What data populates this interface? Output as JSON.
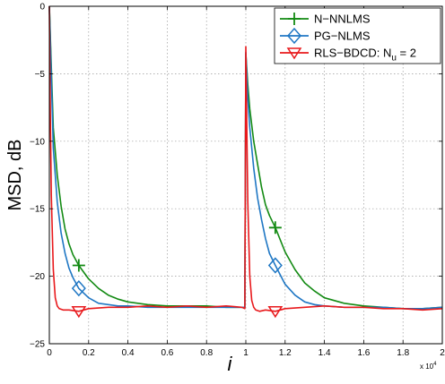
{
  "chart_data": {
    "type": "line",
    "xlabel": "i",
    "ylabel": "MSD, dB",
    "x_multiplier": "x 10^4",
    "xlim": [
      0,
      2
    ],
    "ylim": [
      -25,
      0
    ],
    "xticks": [
      0,
      0.2,
      0.4,
      0.6,
      0.8,
      1,
      1.2,
      1.4,
      1.6,
      1.8,
      2
    ],
    "yticks": [
      0,
      -5,
      -10,
      -15,
      -20,
      -25
    ],
    "xtick_labels": [
      "0",
      "0.2",
      "0.4",
      "0.6",
      "0.8",
      "1",
      "1.2",
      "1.4",
      "1.6",
      "1.8",
      "2"
    ],
    "ytick_labels": [
      "0",
      "−5",
      "−10",
      "−15",
      "−20",
      "−25"
    ],
    "grid": true,
    "legend_position": "top-right",
    "series": [
      {
        "name": "N−NNLMS",
        "color": "#138a13",
        "marker": "plus",
        "marker_x": [
          0.15,
          1.15
        ],
        "x": [
          0,
          0.02,
          0.04,
          0.06,
          0.08,
          0.1,
          0.12,
          0.15,
          0.2,
          0.25,
          0.3,
          0.35,
          0.4,
          0.5,
          0.6,
          0.7,
          0.8,
          0.9,
          0.98,
          0.995,
          1.0,
          1.01,
          1.02,
          1.04,
          1.06,
          1.08,
          1.1,
          1.12,
          1.15,
          1.2,
          1.25,
          1.3,
          1.35,
          1.4,
          1.5,
          1.6,
          1.7,
          1.8,
          1.9,
          2.0
        ],
        "y": [
          0,
          -9.0,
          -12.5,
          -14.8,
          -16.5,
          -17.6,
          -18.4,
          -19.2,
          -20.2,
          -20.9,
          -21.4,
          -21.7,
          -21.9,
          -22.1,
          -22.2,
          -22.2,
          -22.2,
          -22.3,
          -22.3,
          -22.3,
          -3.5,
          -5.8,
          -7.6,
          -10.0,
          -11.7,
          -13.4,
          -14.7,
          -15.5,
          -16.4,
          -18.2,
          -19.5,
          -20.5,
          -21.1,
          -21.6,
          -22.0,
          -22.2,
          -22.3,
          -22.4,
          -22.4,
          -22.3
        ]
      },
      {
        "name": "PG−NLMS",
        "color": "#1f77c4",
        "marker": "diamond",
        "marker_x": [
          0.15,
          1.15
        ],
        "x": [
          0,
          0.02,
          0.04,
          0.06,
          0.08,
          0.1,
          0.12,
          0.15,
          0.2,
          0.25,
          0.3,
          0.35,
          0.4,
          0.5,
          0.6,
          0.7,
          0.8,
          0.9,
          0.98,
          0.995,
          1.0,
          1.01,
          1.02,
          1.04,
          1.06,
          1.08,
          1.1,
          1.12,
          1.15,
          1.2,
          1.25,
          1.3,
          1.35,
          1.4,
          1.5,
          1.6,
          1.7,
          1.8,
          1.9,
          2.0
        ],
        "y": [
          0,
          -10.5,
          -14.5,
          -16.8,
          -18.3,
          -19.4,
          -20.1,
          -20.9,
          -21.6,
          -22.0,
          -22.1,
          -22.2,
          -22.2,
          -22.3,
          -22.3,
          -22.3,
          -22.3,
          -22.3,
          -22.3,
          -22.3,
          -3.4,
          -6.8,
          -9.0,
          -12.0,
          -14.2,
          -15.8,
          -17.2,
          -18.3,
          -19.2,
          -20.6,
          -21.4,
          -21.9,
          -22.1,
          -22.2,
          -22.3,
          -22.3,
          -22.3,
          -22.4,
          -22.4,
          -22.3
        ]
      },
      {
        "name": "RLS−BDCD: N_u = 2",
        "color": "#e8191c",
        "marker": "triangle-down",
        "marker_x": [
          0.15,
          1.15
        ],
        "x": [
          0,
          0.005,
          0.01,
          0.02,
          0.03,
          0.04,
          0.05,
          0.07,
          0.1,
          0.15,
          0.2,
          0.3,
          0.4,
          0.5,
          0.6,
          0.7,
          0.8,
          0.9,
          0.98,
          0.995,
          1.0,
          1.005,
          1.01,
          1.02,
          1.03,
          1.04,
          1.05,
          1.07,
          1.1,
          1.15,
          1.2,
          1.3,
          1.4,
          1.5,
          1.6,
          1.7,
          1.8,
          1.9,
          2.0
        ],
        "y": [
          0,
          -8.0,
          -14.0,
          -19.5,
          -21.6,
          -22.2,
          -22.4,
          -22.5,
          -22.5,
          -22.6,
          -22.4,
          -22.3,
          -22.3,
          -22.2,
          -22.3,
          -22.2,
          -22.3,
          -22.2,
          -22.3,
          -22.4,
          -3.0,
          -9.0,
          -14.5,
          -20.0,
          -21.8,
          -22.3,
          -22.5,
          -22.6,
          -22.5,
          -22.6,
          -22.4,
          -22.3,
          -22.2,
          -22.3,
          -22.3,
          -22.4,
          -22.4,
          -22.5,
          -22.4
        ]
      }
    ]
  }
}
